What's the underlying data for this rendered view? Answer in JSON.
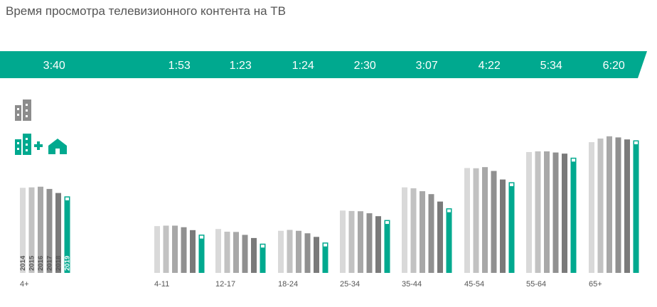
{
  "title": "Время просмотра телевизионного контента на ТВ",
  "colors": {
    "accent": "#00a98f",
    "years": [
      "#d9d9d9",
      "#c2c2c2",
      "#a8a8a8",
      "#909090",
      "#7a7a7a"
    ],
    "legend_icon_gray": "#8c8c8c",
    "legend_icon_green": "#00a98f"
  },
  "legend": {
    "icons": [
      "city-buildings-icon",
      "city-plus-home-icon"
    ]
  },
  "chart_data": {
    "type": "bar",
    "categories": [
      "4+",
      "4-11",
      "12-17",
      "18-24",
      "25-34",
      "35-44",
      "45-54",
      "55-64",
      "65+"
    ],
    "totals": [
      "3:40",
      "1:53",
      "1:23",
      "1:24",
      "2:30",
      "3:07",
      "4:22",
      "5:34",
      "6:20"
    ],
    "series": [
      {
        "name": "2014",
        "values": [
          3.78,
          2.08,
          1.95,
          1.87,
          2.77,
          3.8,
          4.66,
          5.37,
          5.81
        ]
      },
      {
        "name": "2015",
        "values": [
          3.8,
          2.1,
          1.83,
          1.91,
          2.75,
          3.76,
          4.65,
          5.4,
          5.97
        ]
      },
      {
        "name": "2016",
        "values": [
          3.83,
          2.1,
          1.82,
          1.87,
          2.74,
          3.63,
          4.7,
          5.4,
          6.07
        ]
      },
      {
        "name": "2017",
        "values": [
          3.73,
          2.03,
          1.69,
          1.76,
          2.65,
          3.5,
          4.53,
          5.35,
          6.02
        ]
      },
      {
        "name": "2018",
        "values": [
          3.55,
          1.9,
          1.55,
          1.6,
          2.52,
          3.17,
          4.15,
          5.3,
          5.93
        ]
      },
      {
        "name": "2019",
        "values": [
          3.4,
          1.7,
          1.3,
          1.35,
          2.35,
          2.87,
          4.03,
          5.12,
          5.89
        ],
        "style": "white-capped teal outline"
      }
    ],
    "year_labels_on": "4+",
    "ylim": [
      0,
      7
    ],
    "grid": false,
    "legend": "year labels inside the 4+ bars"
  }
}
